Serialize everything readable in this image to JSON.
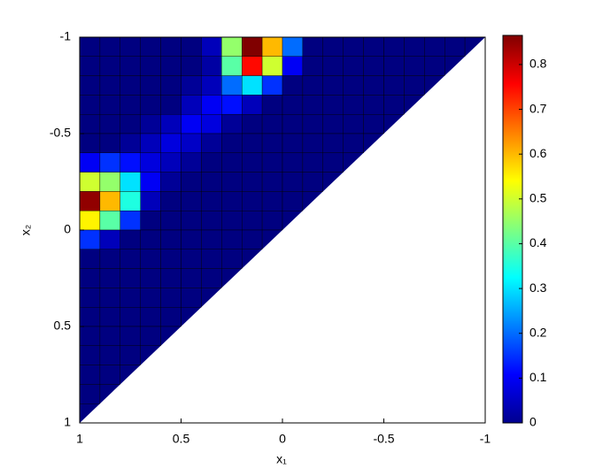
{
  "chart_data": {
    "type": "heatmap",
    "x_label": "x₁",
    "y_label": "x₂",
    "xlim": [
      1,
      -1
    ],
    "xticks": [
      1,
      0.5,
      0,
      -0.5,
      -1
    ],
    "ylim": [
      1,
      -1
    ],
    "yticks": [
      -1,
      -0.5,
      0,
      0.5,
      1
    ],
    "clim": [
      0,
      0.865
    ],
    "cticks": [
      0,
      0.1,
      0.2,
      0.3,
      0.4,
      0.5,
      0.6,
      0.7,
      0.8
    ],
    "colormap": "jet",
    "z": [
      [
        0,
        0,
        0,
        0,
        0,
        0,
        0.05,
        0.45,
        0.87,
        0.6,
        0.2,
        0,
        0,
        0,
        0,
        0,
        0,
        0,
        0,
        0
      ],
      [
        0,
        0,
        0,
        0,
        0,
        0,
        0.03,
        0.4,
        0.75,
        0.5,
        0.1,
        0,
        0,
        0,
        0,
        0,
        0,
        0,
        0,
        null
      ],
      [
        0,
        0,
        0,
        0,
        0,
        0.02,
        0.05,
        0.2,
        0.3,
        0.15,
        0,
        0,
        0,
        0,
        0,
        0,
        0,
        0,
        null,
        null
      ],
      [
        0,
        0,
        0,
        0,
        0,
        0.05,
        0.1,
        0.12,
        0.05,
        0,
        0,
        0,
        0,
        0,
        0,
        0,
        0,
        null,
        null,
        null
      ],
      [
        0,
        0,
        0,
        0.02,
        0.05,
        0.1,
        0.08,
        0.02,
        0,
        0,
        0,
        0,
        0,
        0,
        0,
        0,
        null,
        null,
        null,
        null
      ],
      [
        0,
        0,
        0.02,
        0.05,
        0.08,
        0.06,
        0.02,
        0,
        0,
        0,
        0,
        0,
        0,
        0,
        0,
        null,
        null,
        null,
        null,
        null
      ],
      [
        0.1,
        0.15,
        0.12,
        0.08,
        0.05,
        0.02,
        0,
        0,
        0,
        0,
        0,
        0,
        0,
        0,
        null,
        null,
        null,
        null,
        null,
        null
      ],
      [
        0.5,
        0.45,
        0.3,
        0.1,
        0.02,
        0,
        0,
        0,
        0,
        0,
        0,
        0,
        0,
        null,
        null,
        null,
        null,
        null,
        null,
        null
      ],
      [
        0.85,
        0.6,
        0.35,
        0.05,
        0,
        0,
        0,
        0,
        0,
        0,
        0,
        0,
        null,
        null,
        null,
        null,
        null,
        null,
        null,
        null
      ],
      [
        0.55,
        0.4,
        0.15,
        0,
        0,
        0,
        0,
        0,
        0,
        0,
        0,
        null,
        null,
        null,
        null,
        null,
        null,
        null,
        null,
        null
      ],
      [
        0.15,
        0.05,
        0,
        0,
        0,
        0,
        0,
        0,
        0,
        0,
        null,
        null,
        null,
        null,
        null,
        null,
        null,
        null,
        null,
        null
      ],
      [
        0,
        0,
        0,
        0,
        0,
        0,
        0,
        0,
        0,
        null,
        null,
        null,
        null,
        null,
        null,
        null,
        null,
        null,
        null,
        null
      ],
      [
        0,
        0,
        0,
        0,
        0,
        0,
        0,
        0,
        null,
        null,
        null,
        null,
        null,
        null,
        null,
        null,
        null,
        null,
        null,
        null
      ],
      [
        0,
        0,
        0,
        0,
        0,
        0,
        0,
        null,
        null,
        null,
        null,
        null,
        null,
        null,
        null,
        null,
        null,
        null,
        null,
        null
      ],
      [
        0,
        0,
        0,
        0,
        0,
        0,
        null,
        null,
        null,
        null,
        null,
        null,
        null,
        null,
        null,
        null,
        null,
        null,
        null,
        null
      ],
      [
        0,
        0,
        0,
        0,
        0,
        null,
        null,
        null,
        null,
        null,
        null,
        null,
        null,
        null,
        null,
        null,
        null,
        null,
        null,
        null
      ],
      [
        0,
        0,
        0,
        0,
        null,
        null,
        null,
        null,
        null,
        null,
        null,
        null,
        null,
        null,
        null,
        null,
        null,
        null,
        null,
        null
      ],
      [
        0,
        0,
        0,
        null,
        null,
        null,
        null,
        null,
        null,
        null,
        null,
        null,
        null,
        null,
        null,
        null,
        null,
        null,
        null,
        null
      ],
      [
        0,
        0,
        null,
        null,
        null,
        null,
        null,
        null,
        null,
        null,
        null,
        null,
        null,
        null,
        null,
        null,
        null,
        null,
        null,
        null
      ],
      [
        0,
        null,
        null,
        null,
        null,
        null,
        null,
        null,
        null,
        null,
        null,
        null,
        null,
        null,
        null,
        null,
        null,
        null,
        null,
        null
      ]
    ]
  }
}
